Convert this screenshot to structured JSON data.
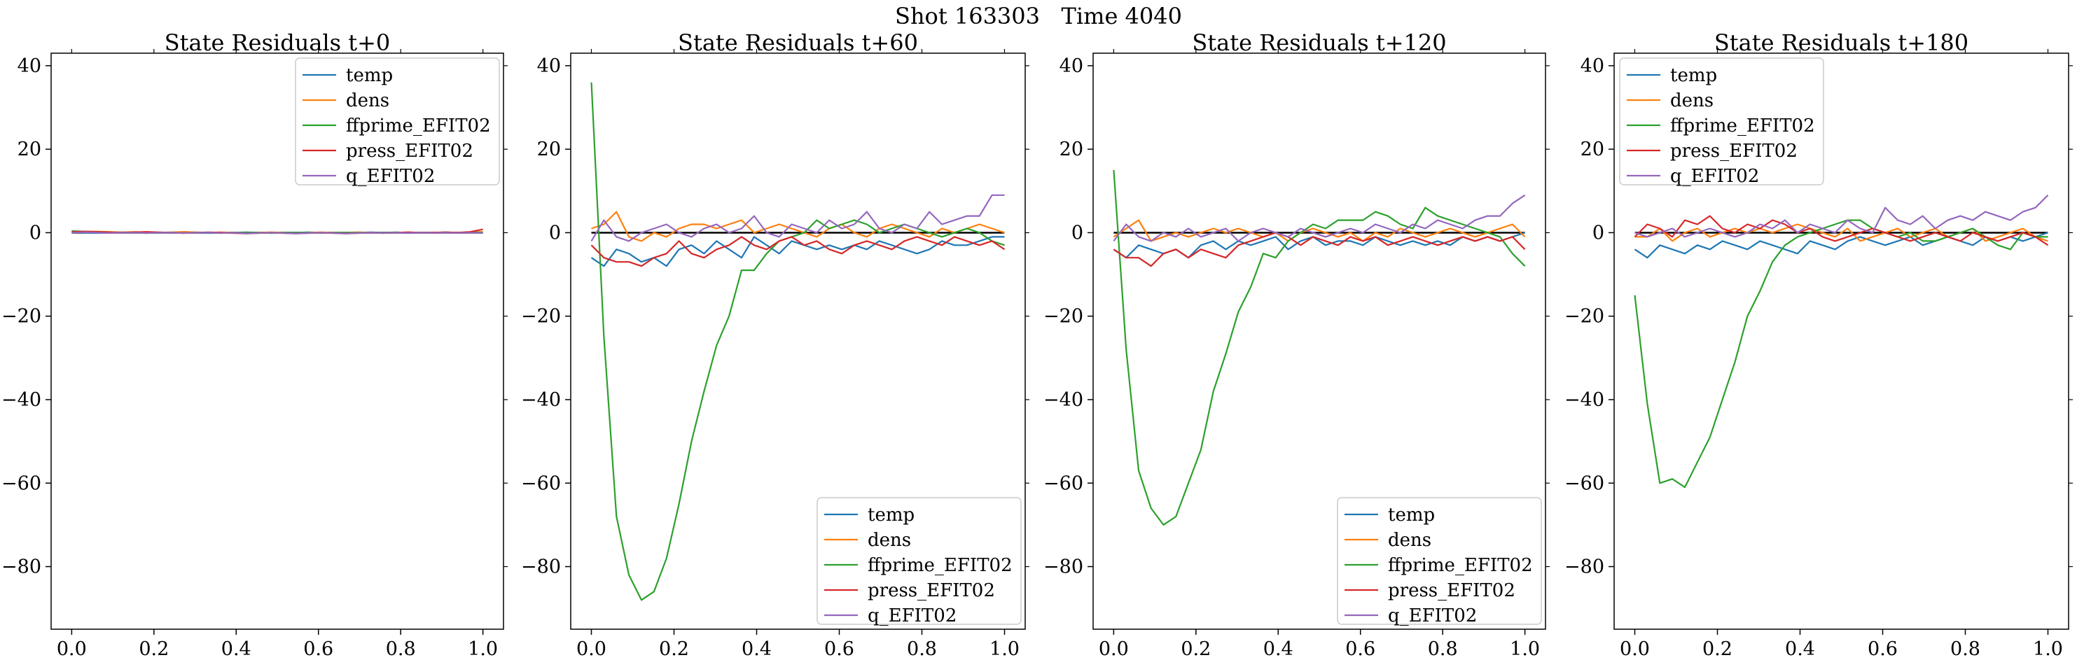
{
  "figure": {
    "suptitle": "Shot 163303   Time 4040"
  },
  "colors": {
    "temp": "#1f77b4",
    "dens": "#ff7f0e",
    "ffprime_EFIT02": "#2ca02c",
    "press_EFIT02": "#d62728",
    "q_EFIT02": "#9467bd",
    "zero_line": "#000000",
    "legend_border": "#cccccc"
  },
  "chart_data": [
    {
      "type": "line",
      "title": "State Residuals t+0",
      "xlabel": "",
      "ylabel": "",
      "xlim": [
        -0.05,
        1.05
      ],
      "ylim": [
        -95,
        43
      ],
      "xticks": [
        0.0,
        0.2,
        0.4,
        0.6,
        0.8,
        1.0
      ],
      "xtick_labels": [
        "0.0",
        "0.2",
        "0.4",
        "0.6",
        "0.8",
        "1.0"
      ],
      "yticks": [
        40,
        20,
        0,
        -20,
        -40,
        -60,
        -80
      ],
      "ytick_labels": [
        "40",
        "20",
        "0",
        "−20",
        "−40",
        "−60",
        "−80"
      ],
      "grid": false,
      "legend_position": "upper right",
      "x": [
        0.0,
        0.0303,
        0.0606,
        0.0909,
        0.1212,
        0.1515,
        0.1818,
        0.2121,
        0.2424,
        0.2727,
        0.303,
        0.3333,
        0.3636,
        0.3939,
        0.4242,
        0.4545,
        0.4848,
        0.5152,
        0.5455,
        0.5758,
        0.6061,
        0.6364,
        0.6667,
        0.697,
        0.7273,
        0.7576,
        0.7879,
        0.8182,
        0.8485,
        0.8788,
        0.9091,
        0.9394,
        0.9697,
        1.0
      ],
      "zero_line": true,
      "series": [
        {
          "name": "temp",
          "values": [
            0.1,
            0.0,
            -0.1,
            0.0,
            0.1,
            0.0,
            -0.1,
            0.0,
            0.0,
            0.1,
            0.0,
            -0.1,
            0.0,
            0.0,
            0.1,
            0.0,
            -0.1,
            0.0,
            0.0,
            0.1,
            0.0,
            0.0,
            -0.1,
            0.0,
            0.1,
            0.0,
            0.0,
            -0.1,
            0.0,
            0.0,
            0.1,
            0.0,
            0.0,
            0.0
          ]
        },
        {
          "name": "dens",
          "values": [
            0.3,
            0.2,
            0.3,
            0.2,
            0.1,
            0.2,
            0.1,
            0.0,
            0.1,
            0.2,
            0.1,
            0.0,
            0.1,
            0.0,
            -0.1,
            0.0,
            0.1,
            0.0,
            -0.1,
            0.0,
            0.1,
            0.0,
            0.0,
            0.1,
            0.0,
            -0.1,
            0.0,
            0.1,
            0.0,
            0.0,
            0.1,
            0.0,
            0.1,
            0.2
          ]
        },
        {
          "name": "ffprime_EFIT02",
          "values": [
            0.4,
            0.3,
            0.2,
            0.1,
            0.0,
            0.0,
            -0.1,
            0.0,
            0.0,
            -0.1,
            0.0,
            0.0,
            -0.1,
            0.0,
            0.0,
            0.0,
            -0.1,
            0.0,
            0.0,
            0.0,
            -0.1,
            0.0,
            0.0,
            0.0,
            0.0,
            0.0,
            0.1,
            0.0,
            0.0,
            0.0,
            0.0,
            0.0,
            0.1,
            0.0
          ]
        },
        {
          "name": "press_EFIT02",
          "values": [
            0.2,
            0.3,
            0.2,
            0.1,
            0.0,
            0.1,
            0.2,
            0.1,
            0.0,
            -0.1,
            0.0,
            0.1,
            0.0,
            -0.1,
            -0.2,
            -0.1,
            0.0,
            -0.1,
            -0.2,
            -0.1,
            0.0,
            -0.1,
            -0.2,
            -0.1,
            0.0,
            -0.1,
            0.0,
            0.1,
            0.0,
            0.0,
            0.1,
            0.0,
            0.2,
            0.8
          ]
        },
        {
          "name": "q_EFIT02",
          "values": [
            0.0,
            0.1,
            0.0,
            -0.1,
            0.0,
            0.0,
            -0.1,
            0.0,
            0.0,
            -0.1,
            0.0,
            0.0,
            -0.1,
            0.0,
            -0.2,
            -0.1,
            0.0,
            -0.1,
            -0.2,
            -0.1,
            0.0,
            -0.1,
            -0.2,
            -0.1,
            0.0,
            -0.1,
            0.0,
            -0.1,
            0.0,
            -0.1,
            0.0,
            -0.1,
            0.0,
            -0.1
          ]
        }
      ]
    },
    {
      "type": "line",
      "title": "State Residuals t+60",
      "xlabel": "",
      "ylabel": "",
      "xlim": [
        -0.05,
        1.05
      ],
      "ylim": [
        -95,
        43
      ],
      "xticks": [
        0.0,
        0.2,
        0.4,
        0.6,
        0.8,
        1.0
      ],
      "xtick_labels": [
        "0.0",
        "0.2",
        "0.4",
        "0.6",
        "0.8",
        "1.0"
      ],
      "yticks": [
        40,
        20,
        0,
        -20,
        -40,
        -60,
        -80
      ],
      "ytick_labels": [
        "40",
        "20",
        "0",
        "−20",
        "−40",
        "−60",
        "−80"
      ],
      "grid": false,
      "legend_position": "lower right",
      "x": [
        0.0,
        0.0303,
        0.0606,
        0.0909,
        0.1212,
        0.1515,
        0.1818,
        0.2121,
        0.2424,
        0.2727,
        0.303,
        0.3333,
        0.3636,
        0.3939,
        0.4242,
        0.4545,
        0.4848,
        0.5152,
        0.5455,
        0.5758,
        0.6061,
        0.6364,
        0.6667,
        0.697,
        0.7273,
        0.7576,
        0.7879,
        0.8182,
        0.8485,
        0.8788,
        0.9091,
        0.9394,
        0.9697,
        1.0
      ],
      "zero_line": true,
      "series": [
        {
          "name": "temp",
          "values": [
            -6,
            -8,
            -4,
            -5,
            -7,
            -6,
            -8,
            -4,
            -3,
            -5,
            -2,
            -4,
            -6,
            -1,
            -3,
            -5,
            -2,
            -3,
            -4,
            -3,
            -4,
            -3,
            -4,
            -2,
            -3,
            -4,
            -5,
            -4,
            -2,
            -3,
            -3,
            -2,
            -1,
            -1
          ]
        },
        {
          "name": "dens",
          "values": [
            1,
            2,
            5,
            -1,
            -2,
            0,
            -1,
            1,
            2,
            2,
            1,
            2,
            3,
            0,
            1,
            2,
            1,
            0,
            -1,
            1,
            2,
            0,
            -1,
            1,
            2,
            1,
            0,
            -1,
            1,
            0,
            1,
            2,
            1,
            0
          ]
        },
        {
          "name": "ffprime_EFIT02",
          "values": [
            36,
            -25,
            -68,
            -82,
            -88,
            -86,
            -78,
            -65,
            -50,
            -38,
            -27,
            -20,
            -9,
            -9,
            -5,
            -2,
            -1,
            0,
            3,
            1,
            2,
            3,
            2,
            0,
            1,
            2,
            1,
            0,
            -1,
            0,
            1,
            0,
            -2,
            -3
          ]
        },
        {
          "name": "press_EFIT02",
          "values": [
            -3,
            -6,
            -7,
            -7,
            -8,
            -6,
            -5,
            -2,
            -5,
            -6,
            -4,
            -3,
            -1,
            -3,
            -4,
            -2,
            -1,
            -3,
            -2,
            -4,
            -5,
            -3,
            -2,
            -3,
            -4,
            -2,
            -1,
            -2,
            -3,
            -1,
            -2,
            -3,
            -2,
            -4
          ]
        },
        {
          "name": "q_EFIT02",
          "values": [
            -2,
            3,
            -1,
            -2,
            0,
            1,
            2,
            0,
            -1,
            1,
            2,
            0,
            1,
            4,
            0,
            -1,
            2,
            1,
            0,
            3,
            1,
            2,
            5,
            1,
            0,
            2,
            1,
            5,
            2,
            3,
            4,
            4,
            9,
            9
          ]
        }
      ]
    },
    {
      "type": "line",
      "title": "State Residuals t+120",
      "xlabel": "",
      "ylabel": "",
      "xlim": [
        -0.05,
        1.05
      ],
      "ylim": [
        -95,
        43
      ],
      "xticks": [
        0.0,
        0.2,
        0.4,
        0.6,
        0.8,
        1.0
      ],
      "xtick_labels": [
        "0.0",
        "0.2",
        "0.4",
        "0.6",
        "0.8",
        "1.0"
      ],
      "yticks": [
        40,
        20,
        0,
        -20,
        -40,
        -60,
        -80
      ],
      "ytick_labels": [
        "40",
        "20",
        "0",
        "−20",
        "−40",
        "−60",
        "−80"
      ],
      "grid": false,
      "legend_position": "lower right",
      "x": [
        0.0,
        0.0303,
        0.0606,
        0.0909,
        0.1212,
        0.1515,
        0.1818,
        0.2121,
        0.2424,
        0.2727,
        0.303,
        0.3333,
        0.3636,
        0.3939,
        0.4242,
        0.4545,
        0.4848,
        0.5152,
        0.5455,
        0.5758,
        0.6061,
        0.6364,
        0.6667,
        0.697,
        0.7273,
        0.7576,
        0.7879,
        0.8182,
        0.8485,
        0.8788,
        0.9091,
        0.9394,
        0.9697,
        1.0
      ],
      "zero_line": true,
      "series": [
        {
          "name": "temp",
          "values": [
            -4,
            -6,
            -3,
            -4,
            -5,
            -4,
            -6,
            -3,
            -2,
            -4,
            -2,
            -3,
            -2,
            -1,
            -4,
            -2,
            -1,
            -3,
            -2,
            -2,
            -3,
            -1,
            -2,
            -3,
            -2,
            -3,
            -2,
            -3,
            -1,
            -2,
            -1,
            -2,
            -1,
            0
          ]
        },
        {
          "name": "dens",
          "values": [
            -1,
            1,
            3,
            -2,
            -1,
            0,
            -1,
            0,
            1,
            0,
            1,
            0,
            -1,
            0,
            -2,
            0,
            1,
            0,
            -1,
            0,
            -2,
            0,
            -1,
            1,
            0,
            -1,
            0,
            1,
            0,
            -1,
            0,
            1,
            2,
            -1
          ]
        },
        {
          "name": "ffprime_EFIT02",
          "values": [
            15,
            -28,
            -57,
            -66,
            -70,
            -68,
            -60,
            -52,
            -38,
            -29,
            -19,
            -13,
            -5,
            -6,
            -2,
            0,
            2,
            1,
            3,
            3,
            3,
            5,
            4,
            2,
            1,
            6,
            4,
            3,
            2,
            1,
            0,
            -1,
            -5,
            -8
          ]
        },
        {
          "name": "press_EFIT02",
          "values": [
            -4,
            -6,
            -6,
            -8,
            -5,
            -4,
            -6,
            -4,
            -5,
            -6,
            -3,
            -2,
            -1,
            0,
            -1,
            -3,
            -1,
            -2,
            -3,
            -1,
            -2,
            -1,
            -3,
            -2,
            -1,
            -2,
            -3,
            -2,
            -1,
            -2,
            -1,
            -2,
            -1,
            -4
          ]
        },
        {
          "name": "q_EFIT02",
          "values": [
            -2,
            2,
            -1,
            -2,
            0,
            -1,
            1,
            -1,
            0,
            1,
            -2,
            0,
            1,
            0,
            -1,
            1,
            0,
            -1,
            0,
            1,
            0,
            2,
            1,
            0,
            2,
            1,
            3,
            2,
            1,
            3,
            4,
            4,
            7,
            9
          ]
        }
      ]
    },
    {
      "type": "line",
      "title": "State Residuals t+180",
      "xlabel": "",
      "ylabel": "",
      "xlim": [
        -0.05,
        1.05
      ],
      "ylim": [
        -95,
        43
      ],
      "xticks": [
        0.0,
        0.2,
        0.4,
        0.6,
        0.8,
        1.0
      ],
      "xtick_labels": [
        "0.0",
        "0.2",
        "0.4",
        "0.6",
        "0.8",
        "1.0"
      ],
      "yticks": [
        40,
        20,
        0,
        -20,
        -40,
        -60,
        -80
      ],
      "ytick_labels": [
        "40",
        "20",
        "0",
        "−20",
        "−40",
        "−60",
        "−80"
      ],
      "grid": false,
      "legend_position": "upper left",
      "x": [
        0.0,
        0.0303,
        0.0606,
        0.0909,
        0.1212,
        0.1515,
        0.1818,
        0.2121,
        0.2424,
        0.2727,
        0.303,
        0.3333,
        0.3636,
        0.3939,
        0.4242,
        0.4545,
        0.4848,
        0.5152,
        0.5455,
        0.5758,
        0.6061,
        0.6364,
        0.6667,
        0.697,
        0.7273,
        0.7576,
        0.7879,
        0.8182,
        0.8485,
        0.8788,
        0.9091,
        0.9394,
        0.9697,
        1.0
      ],
      "zero_line": true,
      "series": [
        {
          "name": "temp",
          "values": [
            -4,
            -6,
            -3,
            -4,
            -5,
            -3,
            -4,
            -2,
            -3,
            -4,
            -2,
            -3,
            -4,
            -5,
            -2,
            -3,
            -4,
            -2,
            -1,
            -2,
            -3,
            -2,
            -1,
            -3,
            -2,
            -1,
            -2,
            -3,
            -1,
            -2,
            -1,
            -2,
            -1,
            0
          ]
        },
        {
          "name": "dens",
          "values": [
            -1,
            -1,
            1,
            -2,
            0,
            1,
            -1,
            0,
            1,
            0,
            1,
            0,
            1,
            2,
            1,
            0,
            -1,
            1,
            -2,
            -1,
            0,
            1,
            -1,
            0,
            1,
            -1,
            0,
            1,
            -2,
            -1,
            0,
            1,
            -1,
            -2
          ]
        },
        {
          "name": "ffprime_EFIT02",
          "values": [
            -15,
            -41,
            -60,
            -59,
            -61,
            -55,
            -49,
            -40,
            -31,
            -20,
            -14,
            -7,
            -3,
            -1,
            0,
            1,
            2,
            3,
            3,
            1,
            0,
            -1,
            0,
            -2,
            -2,
            -1,
            0,
            1,
            -1,
            -3,
            -4,
            0,
            -1,
            -1
          ]
        },
        {
          "name": "press_EFIT02",
          "values": [
            -1,
            2,
            1,
            -1,
            3,
            2,
            4,
            1,
            0,
            2,
            1,
            3,
            2,
            0,
            1,
            -1,
            -2,
            -1,
            0,
            1,
            0,
            -1,
            -2,
            -1,
            0,
            -1,
            -2,
            0,
            -1,
            -2,
            -1,
            0,
            -1,
            -3
          ]
        },
        {
          "name": "q_EFIT02",
          "values": [
            0,
            -1,
            0,
            1,
            -1,
            0,
            1,
            0,
            -1,
            0,
            2,
            1,
            3,
            0,
            2,
            1,
            0,
            3,
            1,
            0,
            6,
            3,
            2,
            4,
            1,
            3,
            4,
            3,
            5,
            4,
            3,
            5,
            6,
            9
          ]
        }
      ]
    }
  ]
}
